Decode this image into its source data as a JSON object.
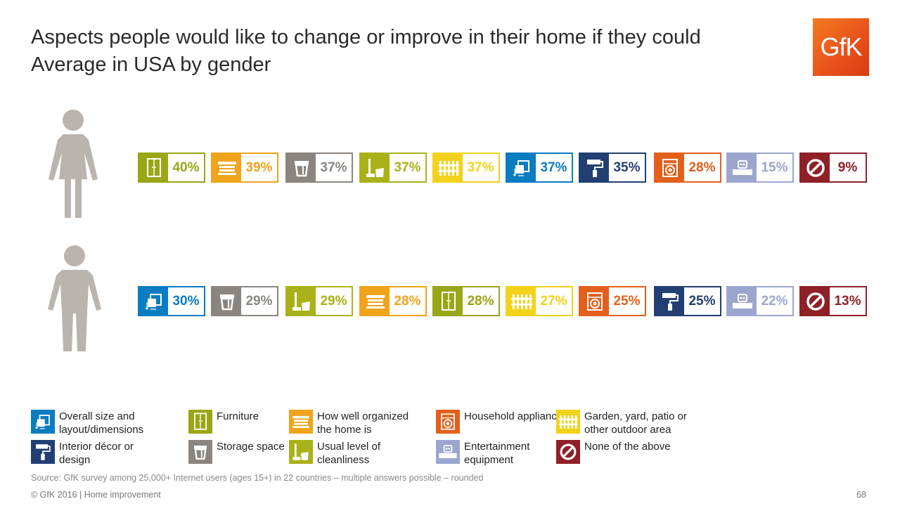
{
  "title_line1": "Aspects people would like to change or improve in their home if they could",
  "title_line2": "Average in USA by gender",
  "logo": "GfK",
  "categories": {
    "size": {
      "label": "Overall size and layout/dimensions",
      "color": "#0a7cc1",
      "icon": "layout-icon"
    },
    "furniture": {
      "label": "Furniture",
      "color": "#99a615",
      "icon": "wardrobe-icon"
    },
    "organized": {
      "label": "How well organized the home is",
      "color": "#efa41c",
      "icon": "drawers-icon"
    },
    "appliances": {
      "label": "Household appliances",
      "color": "#e3601c",
      "icon": "washing-machine-icon"
    },
    "garden": {
      "label": "Garden, yard, patio or other outdoor area",
      "color": "#f2d21a",
      "icon": "fence-icon"
    },
    "decor": {
      "label": "Interior décor or design",
      "color": "#223f73",
      "icon": "paint-roller-icon"
    },
    "storage": {
      "label": "Storage space",
      "color": "#8a8580",
      "icon": "box-icon"
    },
    "cleanliness": {
      "label": "Usual level of cleanliness",
      "color": "#a8b218",
      "icon": "broom-icon"
    },
    "entertainment": {
      "label": "Entertainment equipment",
      "color": "#9ba6cf",
      "icon": "tv-icon"
    },
    "none": {
      "label": "None of the above",
      "color": "#8f2027",
      "icon": "prohibited-icon"
    }
  },
  "chart_data": {
    "type": "table",
    "series": [
      {
        "name": "Women",
        "items": [
          {
            "category": "furniture",
            "value": "40%"
          },
          {
            "category": "organized",
            "value": "39%"
          },
          {
            "category": "storage",
            "value": "37%"
          },
          {
            "category": "cleanliness",
            "value": "37%"
          },
          {
            "category": "garden",
            "value": "37%"
          },
          {
            "category": "size",
            "value": "37%"
          },
          {
            "category": "decor",
            "value": "35%"
          },
          {
            "category": "appliances",
            "value": "28%"
          },
          {
            "category": "entertainment",
            "value": "15%"
          },
          {
            "category": "none",
            "value": "9%"
          }
        ]
      },
      {
        "name": "Men",
        "items": [
          {
            "category": "size",
            "value": "30%"
          },
          {
            "category": "storage",
            "value": "29%"
          },
          {
            "category": "cleanliness",
            "value": "29%"
          },
          {
            "category": "organized",
            "value": "28%"
          },
          {
            "category": "furniture",
            "value": "28%"
          },
          {
            "category": "garden",
            "value": "27%"
          },
          {
            "category": "appliances",
            "value": "25%"
          },
          {
            "category": "decor",
            "value": "25%"
          },
          {
            "category": "entertainment",
            "value": "22%"
          },
          {
            "category": "none",
            "value": "13%"
          }
        ]
      }
    ]
  },
  "legend_order": [
    "size",
    "furniture",
    "organized",
    "appliances",
    "garden",
    "decor",
    "storage",
    "cleanliness",
    "entertainment",
    "none"
  ],
  "source": "Source: GfK survey among 25,000+ Internet users (ages 15+) in 22 countries – multiple answers possible – rounded",
  "footer": "© GfK 2016 | Home improvement",
  "page_number": "68"
}
